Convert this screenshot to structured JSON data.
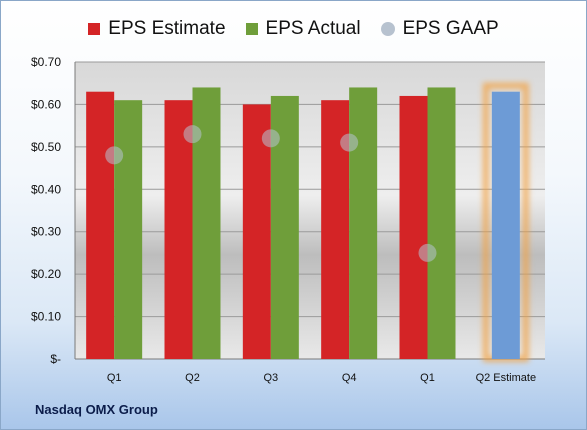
{
  "source_label": "Nasdaq OMX Group",
  "colors": {
    "estimate": "#d42426",
    "actual": "#6f9e3a",
    "gaap": "#b7c2cf",
    "q2_estimate_bar": "#6d9bd6",
    "q2_estimate_glow": "#f3a243"
  },
  "chart_data": {
    "type": "bar",
    "categories": [
      "Q1",
      "Q2",
      "Q3",
      "Q4",
      "Q1",
      "Q2 Estimate"
    ],
    "series": [
      {
        "name": "EPS Estimate",
        "values": [
          0.63,
          0.61,
          0.6,
          0.61,
          0.62,
          0.63
        ],
        "kind": "bar"
      },
      {
        "name": "EPS Actual",
        "values": [
          0.61,
          0.64,
          0.62,
          0.64,
          0.64,
          null
        ],
        "kind": "bar"
      },
      {
        "name": "EPS GAAP",
        "values": [
          0.48,
          0.53,
          0.52,
          0.51,
          0.25,
          null
        ],
        "kind": "marker"
      }
    ],
    "ylim": [
      0,
      0.7
    ],
    "yticks": [
      "$-",
      "$0.10",
      "$0.20",
      "$0.30",
      "$0.40",
      "$0.50",
      "$0.60",
      "$0.70"
    ],
    "ytick_values": [
      0,
      0.1,
      0.2,
      0.3,
      0.4,
      0.5,
      0.6,
      0.7
    ],
    "grid": true,
    "legend": "top"
  }
}
